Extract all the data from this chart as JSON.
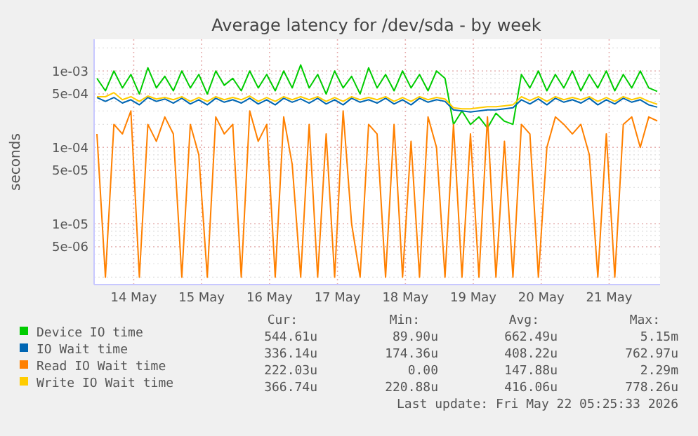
{
  "chart_data": {
    "type": "line",
    "title": "Average latency for /dev/sda - by week",
    "ylabel": "seconds",
    "x": [
      "2026-05-13T23:00",
      "2026-05-14T02:00",
      "2026-05-14T05:00",
      "2026-05-14T08:00",
      "2026-05-14T11:00",
      "2026-05-14T14:00",
      "2026-05-14T17:00",
      "2026-05-14T20:00",
      "2026-05-14T23:00",
      "2026-05-15T02:00",
      "2026-05-15T05:00",
      "2026-05-15T08:00",
      "2026-05-15T11:00",
      "2026-05-15T14:00",
      "2026-05-15T17:00",
      "2026-05-15T20:00",
      "2026-05-15T23:00",
      "2026-05-16T02:00",
      "2026-05-16T05:00",
      "2026-05-16T08:00",
      "2026-05-16T11:00",
      "2026-05-16T14:00",
      "2026-05-16T17:00",
      "2026-05-16T20:00",
      "2026-05-16T23:00",
      "2026-05-17T02:00",
      "2026-05-17T05:00",
      "2026-05-17T08:00",
      "2026-05-17T11:00",
      "2026-05-17T14:00",
      "2026-05-17T17:00",
      "2026-05-17T20:00",
      "2026-05-17T23:00",
      "2026-05-18T02:00",
      "2026-05-18T05:00",
      "2026-05-18T08:00",
      "2026-05-18T11:00",
      "2026-05-18T14:00",
      "2026-05-18T17:00",
      "2026-05-18T20:00",
      "2026-05-18T23:00",
      "2026-05-19T02:00",
      "2026-05-19T05:00",
      "2026-05-19T08:00",
      "2026-05-19T11:00",
      "2026-05-19T14:00",
      "2026-05-19T17:00",
      "2026-05-19T20:00",
      "2026-05-19T23:00",
      "2026-05-20T02:00",
      "2026-05-20T05:00",
      "2026-05-20T08:00",
      "2026-05-20T11:00",
      "2026-05-20T14:00",
      "2026-05-20T17:00",
      "2026-05-20T20:00",
      "2026-05-20T23:00",
      "2026-05-21T02:00",
      "2026-05-21T05:00",
      "2026-05-21T08:00",
      "2026-05-21T11:00",
      "2026-05-21T14:00",
      "2026-05-21T17:00",
      "2026-05-21T20:00",
      "2026-05-21T23:00",
      "2026-05-22T02:00",
      "2026-05-22T05:00"
    ],
    "series": [
      {
        "name": "Device IO time",
        "color": "#00cc00",
        "values": [
          0.0008,
          0.00055,
          0.001,
          0.0006,
          0.0009,
          0.0005,
          0.0011,
          0.0006,
          0.00085,
          0.00055,
          0.001,
          0.0006,
          0.0009,
          0.0005,
          0.001,
          0.00065,
          0.0008,
          0.00055,
          0.001,
          0.0006,
          0.0009,
          0.00055,
          0.001,
          0.0006,
          0.0012,
          0.0006,
          0.0009,
          0.0005,
          0.001,
          0.0006,
          0.00085,
          0.0005,
          0.0011,
          0.0006,
          0.0009,
          0.00055,
          0.001,
          0.0006,
          0.0009,
          0.00055,
          0.001,
          0.0008,
          0.0002,
          0.0003,
          0.0002,
          0.00025,
          0.00018,
          0.00028,
          0.00022,
          0.0002,
          0.0009,
          0.0006,
          0.001,
          0.00055,
          0.0009,
          0.0006,
          0.001,
          0.00055,
          0.0009,
          0.0006,
          0.001,
          0.00055,
          0.0009,
          0.0006,
          0.001,
          0.0006,
          0.00054
        ]
      },
      {
        "name": "IO Wait time",
        "color": "#0066b3",
        "values": [
          0.00045,
          0.0004,
          0.00045,
          0.00038,
          0.00042,
          0.00036,
          0.00045,
          0.0004,
          0.00043,
          0.00038,
          0.00044,
          0.00037,
          0.00042,
          0.00036,
          0.00044,
          0.00039,
          0.00042,
          0.00038,
          0.00044,
          0.00037,
          0.00042,
          0.00036,
          0.00044,
          0.00039,
          0.00043,
          0.00038,
          0.00044,
          0.00037,
          0.00042,
          0.00036,
          0.00044,
          0.00039,
          0.00042,
          0.00038,
          0.00044,
          0.00037,
          0.00042,
          0.00036,
          0.00044,
          0.00039,
          0.00042,
          0.0004,
          0.00031,
          0.0003,
          0.00029,
          0.0003,
          0.00031,
          0.00031,
          0.00032,
          0.00033,
          0.00042,
          0.00037,
          0.00043,
          0.00036,
          0.00044,
          0.00039,
          0.00042,
          0.00038,
          0.00044,
          0.00036,
          0.00042,
          0.00037,
          0.00044,
          0.00039,
          0.00042,
          0.00036,
          0.000336
        ]
      },
      {
        "name": "Read IO Wait time",
        "color": "#ff8000",
        "values": [
          0.00015,
          2e-06,
          0.0002,
          0.00015,
          0.0003,
          2e-06,
          0.0002,
          0.00012,
          0.00025,
          0.00015,
          2e-06,
          0.0002,
          8e-05,
          2e-06,
          0.00025,
          0.00015,
          0.0002,
          2e-06,
          0.0003,
          0.00012,
          0.0002,
          2e-06,
          0.00025,
          6e-05,
          2e-06,
          0.0002,
          2e-06,
          0.00015,
          2e-06,
          0.0003,
          1e-05,
          2e-06,
          0.0002,
          0.00015,
          2e-06,
          0.0002,
          2e-06,
          0.00012,
          2e-06,
          0.00025,
          0.0001,
          2e-06,
          0.0002,
          2e-06,
          0.00015,
          2e-06,
          0.00025,
          2e-06,
          0.00012,
          2e-06,
          0.0002,
          0.00015,
          2e-06,
          0.0001,
          0.00025,
          0.0002,
          0.00015,
          0.0002,
          8e-05,
          2e-06,
          0.00015,
          2e-06,
          0.0002,
          0.00025,
          0.0001,
          0.00025,
          0.000222
        ]
      },
      {
        "name": "Write IO Wait time",
        "color": "#ffcc00",
        "values": [
          0.00046,
          0.00046,
          0.00052,
          0.00042,
          0.00046,
          0.0004,
          0.00047,
          0.00043,
          0.00045,
          0.00042,
          0.00046,
          0.0004,
          0.00045,
          0.0004,
          0.00046,
          0.00042,
          0.00045,
          0.00042,
          0.00047,
          0.0004,
          0.00045,
          0.0004,
          0.00046,
          0.00042,
          0.00046,
          0.00042,
          0.00046,
          0.0004,
          0.00045,
          0.0004,
          0.00046,
          0.00042,
          0.00045,
          0.00042,
          0.00046,
          0.0004,
          0.00045,
          0.0004,
          0.00046,
          0.00042,
          0.00045,
          0.00043,
          0.00033,
          0.00032,
          0.00032,
          0.00033,
          0.00034,
          0.00034,
          0.00035,
          0.00036,
          0.00046,
          0.00041,
          0.00046,
          0.0004,
          0.00046,
          0.00042,
          0.00045,
          0.00042,
          0.00046,
          0.0004,
          0.00045,
          0.0004,
          0.00046,
          0.00042,
          0.00045,
          0.0004,
          0.000367
        ]
      }
    ],
    "xlim": [
      "2026-05-13T22:00",
      "2026-05-22T06:00"
    ],
    "xticks": [
      {
        "value": "2026-05-14T12:00",
        "label": "14 May"
      },
      {
        "value": "2026-05-15T12:00",
        "label": "15 May"
      },
      {
        "value": "2026-05-16T12:00",
        "label": "16 May"
      },
      {
        "value": "2026-05-17T12:00",
        "label": "17 May"
      },
      {
        "value": "2026-05-18T12:00",
        "label": "18 May"
      },
      {
        "value": "2026-05-19T12:00",
        "label": "19 May"
      },
      {
        "value": "2026-05-20T12:00",
        "label": "20 May"
      },
      {
        "value": "2026-05-21T12:00",
        "label": "21 May"
      }
    ],
    "ylim": [
      1.6e-06,
      0.0026
    ],
    "yticks": [
      {
        "value": 0.001,
        "label": "1e-03"
      },
      {
        "value": 0.0005,
        "label": "5e-04"
      },
      {
        "value": 0.0001,
        "label": "1e-04"
      },
      {
        "value": 5e-05,
        "label": "5e-05"
      },
      {
        "value": 1e-05,
        "label": "1e-05"
      },
      {
        "value": 5e-06,
        "label": "5e-06"
      }
    ],
    "log": "y",
    "grid": true,
    "legend": "bottom",
    "marker": "none",
    "line_style": "solid",
    "annotations": [
      "Cur:",
      "Min:",
      "Avg:",
      "Max:",
      "544.61u",
      "89.90u",
      "662.49u",
      "5.15m",
      "336.14u",
      "174.36u",
      "408.22u",
      "762.97u",
      "222.03u",
      "0.00",
      "147.88u",
      "2.29m",
      "366.74u",
      "220.88u",
      "416.06u",
      "778.26u",
      "Last update: Fri May 22 05:25:33 2026"
    ]
  }
}
